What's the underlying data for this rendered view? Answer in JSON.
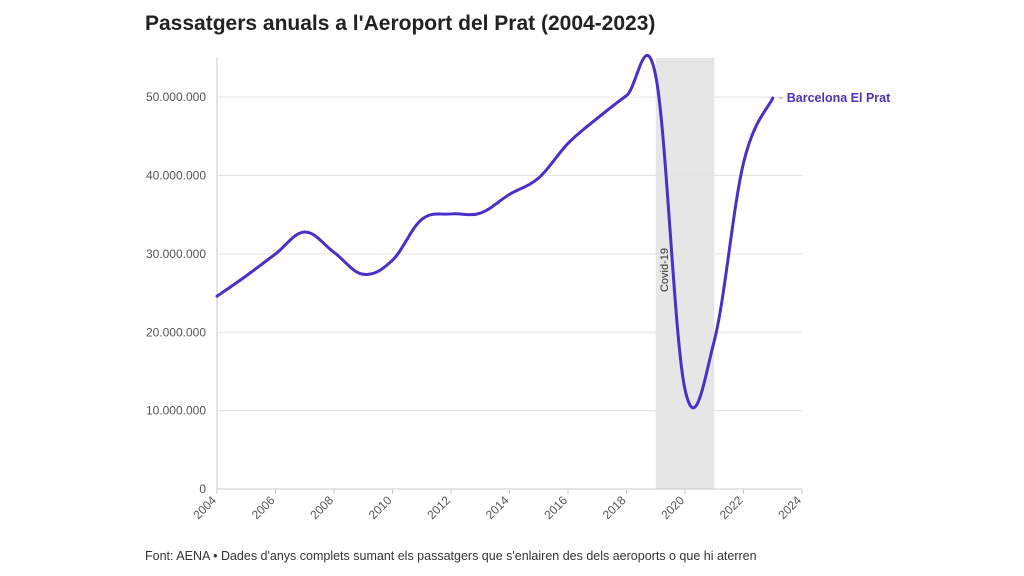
{
  "chart_data": {
    "type": "line",
    "title": "Passatgers anuals a l'Aeroport del Prat (2004-2023)",
    "source_note": "Font: AENA • Dades d'anys complets sumant els passatgers que s'enlairen des dels aeroports o que hi aterren",
    "xlim": [
      2004,
      2024
    ],
    "x_ticks": [
      "2004",
      "2006",
      "2008",
      "2010",
      "2012",
      "2014",
      "2016",
      "2018",
      "2020",
      "2022",
      "2024"
    ],
    "ylim": [
      0,
      55000000
    ],
    "y_ticks": [
      {
        "value": 0,
        "label": "0"
      },
      {
        "value": 10000000,
        "label": "10.000.000"
      },
      {
        "value": 20000000,
        "label": "20.000.000"
      },
      {
        "value": 30000000,
        "label": "30.000.000"
      },
      {
        "value": 40000000,
        "label": "40.000.000"
      },
      {
        "value": 50000000,
        "label": "50.000.000"
      }
    ],
    "grid": true,
    "series": [
      {
        "name": "Barcelona El Prat",
        "color": "#4a2fc9",
        "x": [
          2004,
          2005,
          2006,
          2007,
          2008,
          2009,
          2010,
          2011,
          2012,
          2013,
          2014,
          2015,
          2016,
          2017,
          2018,
          2019,
          2020,
          2021,
          2022,
          2023
        ],
        "y": [
          24600000,
          27200000,
          30000000,
          32800000,
          30200000,
          27400000,
          29200000,
          34400000,
          35100000,
          35200000,
          37600000,
          39700000,
          44100000,
          47300000,
          50200000,
          52700000,
          12700000,
          18900000,
          41600000,
          49900000
        ]
      }
    ],
    "annotations": [
      {
        "label": "Covid-19",
        "x_start": 2019,
        "x_end": 2021,
        "color": "#e6e6e6"
      }
    ]
  }
}
